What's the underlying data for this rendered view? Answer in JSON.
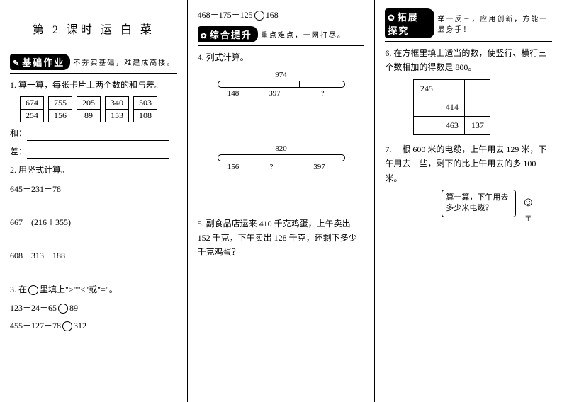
{
  "col1": {
    "title": "第 2 课时   运  白  菜",
    "section1_badge": "基础作业",
    "section1_sub": "不夯实基础，难建成高楼。",
    "q1_text": "1. 算一算，每张卡片上两个数的和与差。",
    "cards": [
      [
        "674",
        "254"
      ],
      [
        "755",
        "156"
      ],
      [
        "205",
        "89"
      ],
      [
        "340",
        "153"
      ],
      [
        "503",
        "108"
      ]
    ],
    "he_label": "和：",
    "cha_label": "差：",
    "q2_text": "2. 用竖式计算。",
    "q2_expr1": "645－231－78",
    "q2_expr2": "667－(216＋355)",
    "q2_expr3": "608－313－188",
    "q3_text": "3. 在         里填上\">\"\"<\"或\"=\"。",
    "q3_a_left": "123－24－65",
    "q3_a_right": "89",
    "q3_b_left": "455－127－78",
    "q3_b_right": "312"
  },
  "col2": {
    "top_left": "468－175－125",
    "top_right": "168",
    "section2_badge": "综合提升",
    "section2_sub": "重点难点，一网打尽。",
    "q4_text": "4. 列式计算。",
    "bar1": {
      "total": "974",
      "segs": [
        25,
        40,
        35
      ],
      "labels": [
        "148",
        "397",
        "?"
      ]
    },
    "bar2": {
      "total": "820",
      "segs": [
        25,
        35,
        40
      ],
      "labels": [
        "156",
        "?",
        "397"
      ]
    },
    "q5_text": "5. 副食品店运来 410 千克鸡蛋，上午卖出 152 千克，下午卖出 128 千克，还剩下多少千克鸡蛋？"
  },
  "col3": {
    "section3_badge": "拓展探究",
    "section3_sub": "举一反三，应用创新，方能一显身手！",
    "q6_text": "6. 在方框里填上适当的数，使竖行、横行三个数相加的得数是 800。",
    "grid": [
      [
        "245",
        "",
        ""
      ],
      [
        "",
        "414",
        ""
      ],
      [
        "",
        "463",
        "137"
      ]
    ],
    "q7_text": "7. 一根 600 米的电缆，上午用去 129 米，下午用去一些，剩下的比上午用去的多 100 米。",
    "speech": "算一算，下午用去多少米电缆？"
  }
}
